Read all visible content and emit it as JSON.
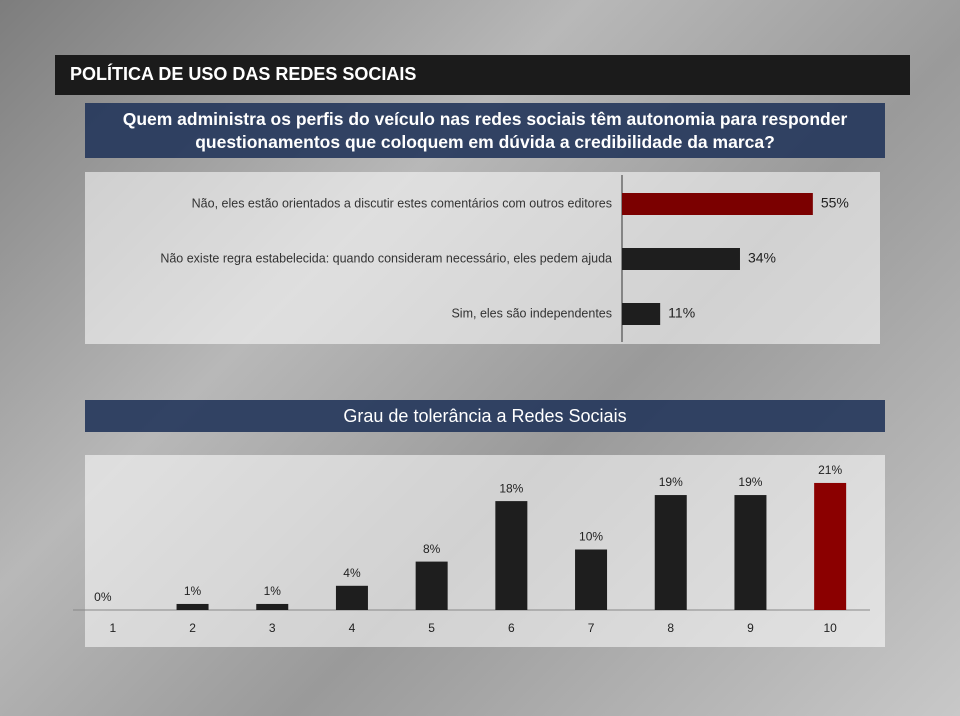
{
  "header": {
    "title": "POLÍTICA DE USO DAS REDES SOCIAIS"
  },
  "question": "Quem administra os perfis do veículo nas redes sociais têm autonomia para responder questionamentos que coloquem em dúvida a credibilidade da marca?",
  "chart_data": [
    {
      "type": "hbar",
      "categories": [
        "Não, eles estão orientados a discutir estes comentários com outros editores",
        "Não existe regra estabelecida: quando consideram necessário, eles pedem ajuda",
        "Sim, eles são independentes"
      ],
      "values": [
        55,
        34,
        11
      ],
      "value_labels": [
        "55%",
        "34%",
        "11%"
      ],
      "colors": [
        "#7b0000",
        "#1e1e1e",
        "#1e1e1e"
      ]
    },
    {
      "type": "bar",
      "title": "Grau de tolerância a Redes Sociais",
      "categories": [
        "1",
        "2",
        "3",
        "4",
        "5",
        "6",
        "7",
        "8",
        "9",
        "10"
      ],
      "values": [
        0,
        1,
        1,
        4,
        8,
        18,
        10,
        19,
        19,
        21
      ],
      "value_labels": [
        "0%",
        "1%",
        "1%",
        "4%",
        "8%",
        "18%",
        "10%",
        "19%",
        "19%",
        "21%"
      ],
      "colors": [
        "#1e1e1e",
        "#1e1e1e",
        "#1e1e1e",
        "#1e1e1e",
        "#1e1e1e",
        "#1e1e1e",
        "#1e1e1e",
        "#1e1e1e",
        "#1e1e1e",
        "#8b0000"
      ]
    }
  ]
}
